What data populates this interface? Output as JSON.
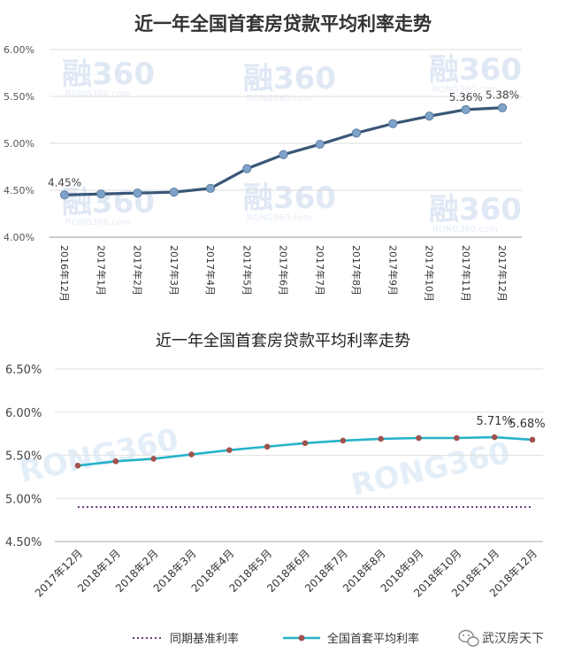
{
  "chart_data": [
    {
      "type": "line",
      "title": "近一年全国首套房贷款平均利率走势",
      "categories": [
        "2016年12月",
        "2017年1月",
        "2017年2月",
        "2017年3月",
        "2017年4月",
        "2017年5月",
        "2017年6月",
        "2017年7月",
        "2017年8月",
        "2017年9月",
        "2017年10月",
        "2017年11月",
        "2017年12月"
      ],
      "series": [
        {
          "values": [
            4.45,
            4.46,
            4.47,
            4.48,
            4.52,
            4.73,
            4.88,
            4.99,
            5.11,
            5.21,
            5.29,
            5.36,
            5.38
          ]
        }
      ],
      "yticks": [
        "4.00%",
        "4.50%",
        "5.00%",
        "5.50%",
        "6.00%"
      ],
      "ylim": [
        4.0,
        6.0
      ],
      "data_labels": [
        {
          "index": 0,
          "text": "4.45%"
        },
        {
          "index": 11,
          "text": "5.36%"
        },
        {
          "index": 12,
          "text": "5.38%"
        }
      ],
      "grid": true,
      "colors": {
        "line": "#3a5777",
        "marker": "#7fa2c8",
        "axis": "#999999"
      },
      "watermark": "融360 RONG360.com"
    },
    {
      "type": "line",
      "title": "近一年全国首套房贷款平均利率走势",
      "categories": [
        "2017年12月",
        "2018年1月",
        "2018年2月",
        "2018年3月",
        "2018年4月",
        "2018年5月",
        "2018年6月",
        "2018年7月",
        "2018年8月",
        "2018年9月",
        "2018年10月",
        "2018年11月",
        "2018年12月"
      ],
      "series": [
        {
          "name": "同期基准利率",
          "style": "dotted",
          "color": "#6b3a7d",
          "values": [
            4.9,
            4.9,
            4.9,
            4.9,
            4.9,
            4.9,
            4.9,
            4.9,
            4.9,
            4.9,
            4.9,
            4.9,
            4.9
          ]
        },
        {
          "name": "全国首套平均利率",
          "style": "solid",
          "color": "#26b3c9",
          "marker": "#a0524f",
          "values": [
            5.38,
            5.43,
            5.46,
            5.51,
            5.56,
            5.6,
            5.64,
            5.67,
            5.69,
            5.7,
            5.7,
            5.71,
            5.68
          ]
        }
      ],
      "yticks": [
        "4.50%",
        "5.00%",
        "5.50%",
        "6.00%",
        "6.50%"
      ],
      "ylim": [
        4.5,
        6.5
      ],
      "data_labels": [
        {
          "series": 1,
          "index": 11,
          "text": "5.71%"
        },
        {
          "series": 1,
          "index": 12,
          "text": "5.68%"
        }
      ],
      "grid": true,
      "legend": "bottom",
      "watermark": "RONG360"
    }
  ],
  "branding": {
    "wechat_account": "武汉房天下"
  }
}
